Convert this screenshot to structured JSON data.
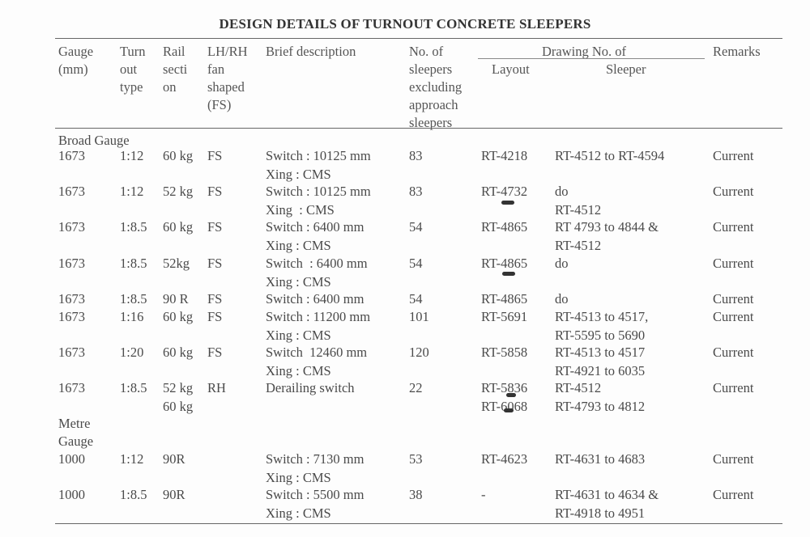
{
  "title": "DESIGN DETAILS OF TURNOUT CONCRETE SLEEPERS",
  "headers": {
    "gauge": "Gauge\n(mm)",
    "turnout": "Turn\nout\ntype",
    "rail": "Rail\nsecti\non",
    "lhrh": "LH/RH\nfan\nshaped\n(FS)",
    "brief": "Brief description",
    "no": "No. of\nsleepers\nexcluding\napproach\nsleepers",
    "drawing": "Drawing No. of",
    "layout": "Layout",
    "sleeper": "Sleeper",
    "remarks": "Remarks"
  },
  "sections": {
    "broad": "Broad Gauge",
    "metre": "Metre\nGauge"
  },
  "rows": [
    {
      "gauge": "1673",
      "turnout": "1:12",
      "rail": "60 kg",
      "lhrh": "FS",
      "brief": "Switch : 10125 mm\nXing : CMS",
      "no": "83",
      "layout": "RT-4218",
      "sleeper": "RT-4512 to RT-4594",
      "remarks": "Current"
    },
    {
      "gauge": "1673",
      "turnout": "1:12",
      "rail": "52 kg",
      "lhrh": "FS",
      "brief": "Switch : 10125 mm\nXing  : CMS",
      "no": "83",
      "layout": "RT-4732",
      "sleeper": "do\nRT-4512",
      "remarks": "Current"
    },
    {
      "gauge": "1673",
      "turnout": "1:8.5",
      "rail": "60 kg",
      "lhrh": "FS",
      "brief": "Switch : 6400 mm\nXing : CMS",
      "no": "54",
      "layout": "RT-4865",
      "sleeper": "RT 4793 to 4844 &\nRT-4512",
      "remarks": "Current"
    },
    {
      "gauge": "1673",
      "turnout": "1:8.5",
      "rail": "52kg",
      "lhrh": "FS",
      "brief": "Switch  : 6400 mm\nXing : CMS",
      "no": "54",
      "layout": "RT-4865",
      "sleeper": "do",
      "remarks": "Current"
    },
    {
      "gauge": "1673",
      "turnout": "1:8.5",
      "rail": "90 R",
      "lhrh": "FS",
      "brief": "Switch : 6400 mm",
      "no": "54",
      "layout": "RT-4865",
      "sleeper": "do",
      "remarks": "Current"
    },
    {
      "gauge": "1673",
      "turnout": "1:16",
      "rail": "60 kg",
      "lhrh": "FS",
      "brief": "Switch : 11200 mm\nXing : CMS",
      "no": "101",
      "layout": "RT-5691",
      "sleeper": "RT-4513 to 4517,\nRT-5595 to 5690",
      "remarks": "Current"
    },
    {
      "gauge": "1673",
      "turnout": "1:20",
      "rail": "60 kg",
      "lhrh": "FS",
      "brief": "Switch  12460 mm\nXing : CMS",
      "no": "120",
      "layout": "RT-5858",
      "sleeper": "RT-4513 to 4517\nRT-4921 to 6035",
      "remarks": "Current"
    },
    {
      "gauge": "1673",
      "turnout": "1:8.5",
      "rail": "52 kg\n60 kg",
      "lhrh": "RH",
      "brief": "Derailing switch",
      "no": "22",
      "layout": "RT-5836\nRT-6068",
      "sleeper": "RT-4512\nRT-4793 to 4812",
      "remarks": "Current"
    },
    {
      "gauge": "1000",
      "turnout": "1:12",
      "rail": "90R",
      "lhrh": "",
      "brief": "Switch : 7130 mm\nXing : CMS",
      "no": "53",
      "layout": "RT-4623",
      "sleeper": "RT-4631 to 4683",
      "remarks": "Current"
    },
    {
      "gauge": "1000",
      "turnout": "1:8.5",
      "rail": "90R",
      "lhrh": "",
      "brief": "Switch : 5500 mm\nXing : CMS",
      "no": "38",
      "layout": "-",
      "sleeper": "RT-4631 to 4634 &\nRT-4918 to 4951",
      "remarks": "Current"
    }
  ]
}
